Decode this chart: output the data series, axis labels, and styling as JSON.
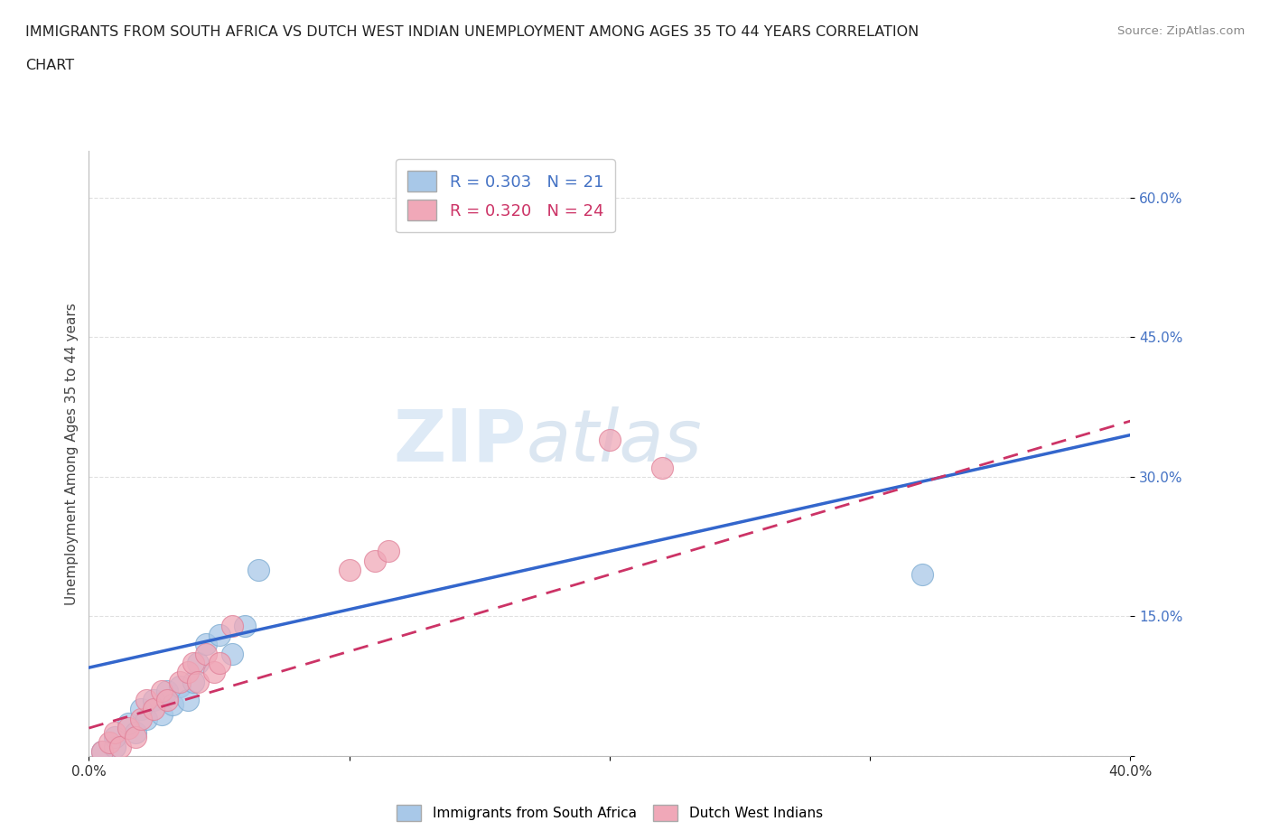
{
  "title_line1": "IMMIGRANTS FROM SOUTH AFRICA VS DUTCH WEST INDIAN UNEMPLOYMENT AMONG AGES 35 TO 44 YEARS CORRELATION",
  "title_line2": "CHART",
  "source": "Source: ZipAtlas.com",
  "ylabel": "Unemployment Among Ages 35 to 44 years",
  "xlim": [
    0.0,
    0.4
  ],
  "ylim": [
    0.0,
    0.65
  ],
  "xticks": [
    0.0,
    0.1,
    0.2,
    0.3,
    0.4
  ],
  "xtick_labels": [
    "0.0%",
    "",
    "",
    "",
    "40.0%"
  ],
  "yticks": [
    0.0,
    0.15,
    0.3,
    0.45,
    0.6
  ],
  "ytick_labels": [
    "",
    "15.0%",
    "30.0%",
    "45.0%",
    "60.0%"
  ],
  "blue_color": "#A8C8E8",
  "pink_color": "#F0A8B8",
  "blue_edge_color": "#7AAAD0",
  "pink_edge_color": "#E08098",
  "blue_line_color": "#3366CC",
  "pink_line_color": "#CC3366",
  "R_blue": 0.303,
  "N_blue": 21,
  "R_pink": 0.32,
  "N_pink": 24,
  "blue_scatter_x": [
    0.005,
    0.01,
    0.01,
    0.015,
    0.018,
    0.02,
    0.022,
    0.025,
    0.028,
    0.03,
    0.032,
    0.035,
    0.038,
    0.04,
    0.042,
    0.045,
    0.05,
    0.055,
    0.06,
    0.065,
    0.32
  ],
  "blue_scatter_y": [
    0.005,
    0.01,
    0.02,
    0.035,
    0.025,
    0.05,
    0.04,
    0.06,
    0.045,
    0.07,
    0.055,
    0.075,
    0.06,
    0.08,
    0.1,
    0.12,
    0.13,
    0.11,
    0.14,
    0.2,
    0.195
  ],
  "pink_scatter_x": [
    0.005,
    0.008,
    0.01,
    0.012,
    0.015,
    0.018,
    0.02,
    0.022,
    0.025,
    0.028,
    0.03,
    0.035,
    0.038,
    0.04,
    0.042,
    0.045,
    0.048,
    0.05,
    0.055,
    0.1,
    0.11,
    0.115,
    0.2,
    0.22
  ],
  "pink_scatter_y": [
    0.005,
    0.015,
    0.025,
    0.01,
    0.03,
    0.02,
    0.04,
    0.06,
    0.05,
    0.07,
    0.06,
    0.08,
    0.09,
    0.1,
    0.08,
    0.11,
    0.09,
    0.1,
    0.14,
    0.2,
    0.21,
    0.22,
    0.34,
    0.31
  ],
  "blue_line_x": [
    0.0,
    0.4
  ],
  "blue_line_y": [
    0.095,
    0.345
  ],
  "pink_line_x": [
    0.0,
    0.4
  ],
  "pink_line_y": [
    0.03,
    0.36
  ],
  "legend_label_blue": "Immigrants from South Africa",
  "legend_label_pink": "Dutch West Indians",
  "background_color": "#FFFFFF",
  "grid_color": "#DDDDDD"
}
